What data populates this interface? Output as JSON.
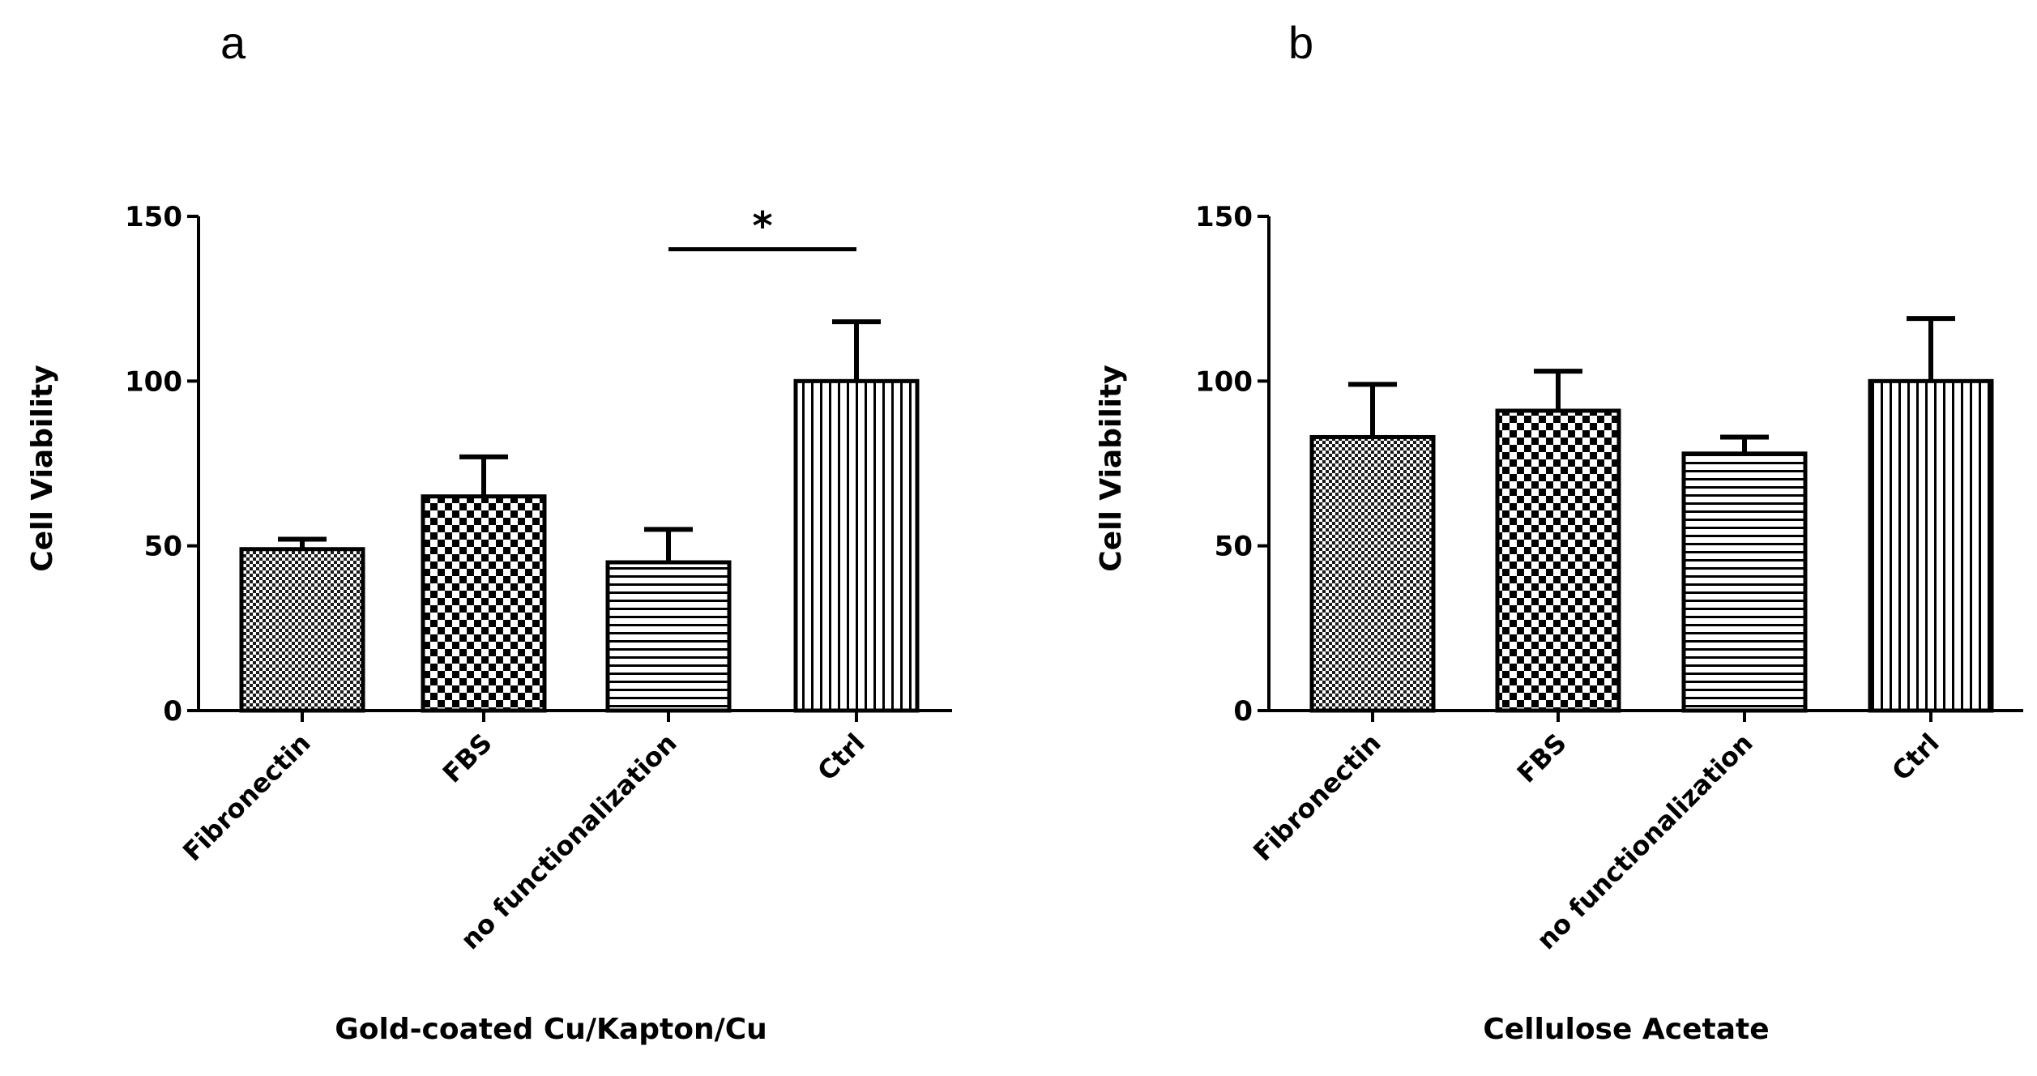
{
  "chart_data": [
    {
      "type": "bar",
      "panel_label": "a",
      "categories": [
        "Fibronectin",
        "FBS",
        "no functionalization",
        "Ctrl"
      ],
      "values": [
        49,
        65,
        45,
        100
      ],
      "errors": [
        3,
        12,
        10,
        18
      ],
      "patterns": [
        "fine-check",
        "checker",
        "horizontal",
        "vertical"
      ],
      "title": "",
      "xlabel": "Gold-coated Cu/Kapton/Cu",
      "ylabel": "Cell Viability",
      "ylim": [
        0,
        150
      ],
      "yticks": [
        0,
        50,
        100,
        150
      ],
      "significance": [
        {
          "from": 2,
          "to": 3,
          "value": 140,
          "label": "*"
        }
      ]
    },
    {
      "type": "bar",
      "panel_label": "b",
      "categories": [
        "Fibronectin",
        "FBS",
        "no functionalization",
        "Ctrl"
      ],
      "values": [
        83,
        91,
        78,
        100
      ],
      "errors": [
        16,
        12,
        5,
        19
      ],
      "patterns": [
        "fine-check",
        "checker",
        "horizontal",
        "vertical"
      ],
      "title": "",
      "xlabel": "Cellulose Acetate",
      "ylabel": "Cell Viability",
      "ylim": [
        0,
        150
      ],
      "yticks": [
        0,
        50,
        100,
        150
      ],
      "significance": []
    }
  ]
}
